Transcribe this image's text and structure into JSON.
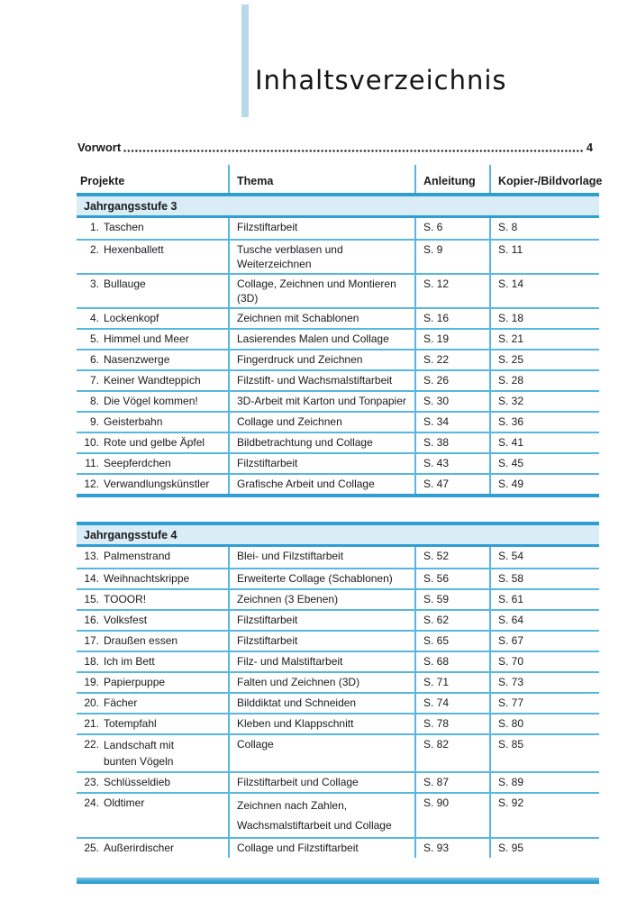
{
  "page": {
    "title": "Inhaltsverzeichnis"
  },
  "preface": {
    "label": "Vorwort",
    "page": "4"
  },
  "table": {
    "headers": [
      "Projekte",
      "Thema",
      "Anleitung",
      "Kopier-/Bildvorlage"
    ],
    "sections": [
      {
        "title": "Jahrgangsstufe 3",
        "rows": [
          {
            "num": "1.",
            "project": "Taschen",
            "thema": "Filzstiftarbeit",
            "anleitung": "S. 6",
            "vorlage": "S. 8"
          },
          {
            "num": "2.",
            "project": "Hexenballett",
            "thema": "Tusche verblasen und Weiterzeichnen",
            "anleitung": "S. 9",
            "vorlage": "S. 11"
          },
          {
            "num": "3.",
            "project": "Bullauge",
            "thema": "Collage, Zeichnen und Montieren (3D)",
            "anleitung": "S. 12",
            "vorlage": "S. 14"
          },
          {
            "num": "4.",
            "project": "Lockenkopf",
            "thema": "Zeichnen mit Schablonen",
            "anleitung": "S. 16",
            "vorlage": "S. 18"
          },
          {
            "num": "5.",
            "project": "Himmel und Meer",
            "thema": "Lasierendes Malen und Collage",
            "anleitung": "S. 19",
            "vorlage": "S. 21"
          },
          {
            "num": "6.",
            "project": "Nasenzwerge",
            "thema": "Fingerdruck und Zeichnen",
            "anleitung": "S. 22",
            "vorlage": "S. 25"
          },
          {
            "num": "7.",
            "project": "Keiner Wandteppich",
            "thema": "Filzstift- und Wachsmalstiftarbeit",
            "anleitung": "S. 26",
            "vorlage": "S. 28"
          },
          {
            "num": "8.",
            "project": "Die Vögel kommen!",
            "thema": "3D-Arbeit mit Karton und Tonpapier",
            "anleitung": "S. 30",
            "vorlage": "S. 32"
          },
          {
            "num": "9.",
            "project": "Geisterbahn",
            "thema": "Collage und Zeichnen",
            "anleitung": "S. 34",
            "vorlage": "S. 36"
          },
          {
            "num": "10.",
            "project": "Rote und gelbe Äpfel",
            "thema": "Bildbetrachtung und Collage",
            "anleitung": "S. 38",
            "vorlage": "S. 41"
          },
          {
            "num": "11.",
            "project": "Seepferdchen",
            "thema": "Filzstiftarbeit",
            "anleitung": "S. 43",
            "vorlage": "S. 45"
          },
          {
            "num": "12.",
            "project": "Verwandlungskünstler",
            "thema": "Grafische Arbeit und Collage",
            "anleitung": "S. 47",
            "vorlage": "S. 49"
          }
        ]
      },
      {
        "title": "Jahrgangsstufe 4",
        "rows": [
          {
            "num": "13.",
            "project": "Palmenstrand",
            "thema": "Blei- und Filzstiftarbeit",
            "anleitung": "S. 52",
            "vorlage": "S. 54"
          },
          {
            "num": "14.",
            "project": "Weihnachtskrippe",
            "thema": "Erweiterte Collage (Schablonen)",
            "anleitung": "S. 56",
            "vorlage": "S. 58"
          },
          {
            "num": "15.",
            "project": "TOOOR!",
            "thema": "Zeichnen (3 Ebenen)",
            "anleitung": "S. 59",
            "vorlage": "S. 61"
          },
          {
            "num": "16.",
            "project": "Volksfest",
            "thema": "Filzstiftarbeit",
            "anleitung": "S. 62",
            "vorlage": "S. 64"
          },
          {
            "num": "17.",
            "project": "Draußen essen",
            "thema": "Filzstiftarbeit",
            "anleitung": "S. 65",
            "vorlage": "S. 67"
          },
          {
            "num": "18.",
            "project": "Ich im Bett",
            "thema": "Filz- und Malstiftarbeit",
            "anleitung": "S. 68",
            "vorlage": "S. 70"
          },
          {
            "num": "19.",
            "project": "Papierpuppe",
            "thema": "Falten und Zeichnen (3D)",
            "anleitung": "S. 71",
            "vorlage": "S. 73"
          },
          {
            "num": "20.",
            "project": "Fächer",
            "thema": "Bilddiktat und Schneiden",
            "anleitung": "S. 74",
            "vorlage": "S. 77"
          },
          {
            "num": "21.",
            "project": "Totempfahl",
            "thema": "Kleben und Klappschnitt",
            "anleitung": "S. 78",
            "vorlage": "S. 80"
          },
          {
            "num": "22.",
            "project": "Landschaft mit\nbunten Vögeln",
            "thema": "Collage",
            "anleitung": "S. 82",
            "vorlage": "S. 85"
          },
          {
            "num": "23.",
            "project": "Schlüsseldieb",
            "thema": "Filzstiftarbeit und Collage",
            "anleitung": "S. 87",
            "vorlage": "S. 89"
          },
          {
            "num": "24.",
            "project": "Oldtimer",
            "thema": "Zeichnen nach Zahlen,\nWachsmalstiftarbeit und Collage",
            "anleitung": "S. 90",
            "vorlage": "S. 92"
          },
          {
            "num": "25.",
            "project": "Außerirdischer",
            "thema": "Collage und Filzstiftarbeit",
            "anleitung": "S. 93",
            "vorlage": "S. 95"
          }
        ]
      }
    ]
  },
  "colors": {
    "bar_blue": "#2e9fd0",
    "light_blue_bg": "#daedf7",
    "line_blue": "#57b7e1",
    "title_bar_blue": "#b8d9ec"
  }
}
